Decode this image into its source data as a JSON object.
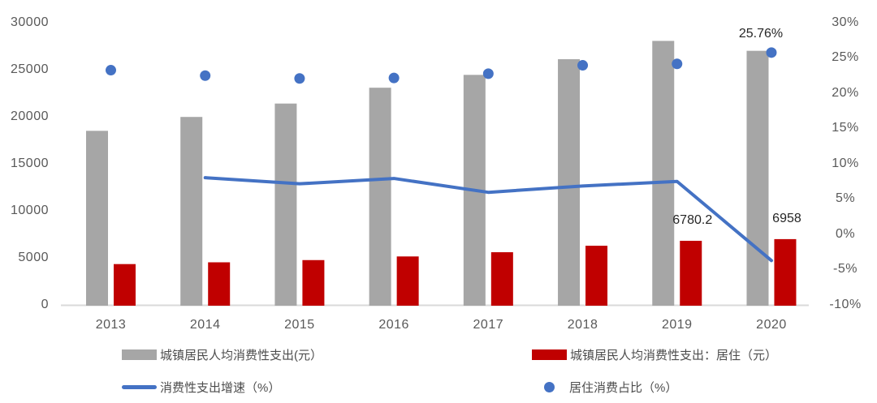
{
  "chart_data": {
    "type": "combo",
    "categories": [
      "2013",
      "2014",
      "2015",
      "2016",
      "2017",
      "2018",
      "2019",
      "2020"
    ],
    "series": [
      {
        "name": "城镇居民人均消费性支出(元）",
        "type": "bar",
        "axis": "left",
        "color": "#a6a6a6",
        "values": [
          18488,
          19968,
          21392,
          23079,
          24445,
          26112,
          28063,
          27007
        ]
      },
      {
        "name": "城镇居民人均消费性支出：居住（元）",
        "type": "bar",
        "axis": "left",
        "color": "#c00000",
        "values": [
          4301,
          4490,
          4726,
          5114,
          5564,
          6255,
          6780.2,
          6958
        ]
      },
      {
        "name": "消费性支出增速（%）",
        "type": "line",
        "axis": "right",
        "color": "#4472c4",
        "values": [
          null,
          8.0,
          7.13,
          7.89,
          5.92,
          6.82,
          7.47,
          -3.76
        ]
      },
      {
        "name": "居住消费占比（%）",
        "type": "scatter",
        "axis": "right",
        "color": "#4472c4",
        "values": [
          23.26,
          22.49,
          22.09,
          22.16,
          22.76,
          23.95,
          24.16,
          25.76
        ]
      }
    ],
    "left_axis": {
      "min": 0,
      "max": 30000,
      "step": 5000,
      "tick_labels": [
        "30000",
        "25000",
        "20000",
        "15000",
        "10000",
        "5000",
        "0"
      ]
    },
    "right_axis": {
      "min": -10,
      "max": 30,
      "step": 5,
      "tick_labels": [
        "30%",
        "25%",
        "20%",
        "15%",
        "10%",
        "5%",
        "0%",
        "-5%",
        "-10%"
      ]
    },
    "annotations": [
      {
        "text": "25.76%",
        "series": 3,
        "index": 7
      },
      {
        "text": "6780.2",
        "series": 1,
        "index": 6
      },
      {
        "text": "6958",
        "series": 1,
        "index": 7
      }
    ],
    "grid": false,
    "legend_position": "bottom",
    "title": "",
    "xlabel": "",
    "ylabel": ""
  },
  "legend": {
    "items": [
      {
        "label": "城镇居民人均消费性支出(元）",
        "swatch": "bar",
        "color": "#a6a6a6"
      },
      {
        "label": "城镇居民人均消费性支出：居住（元）",
        "swatch": "bar",
        "color": "#c00000"
      },
      {
        "label": "消费性支出增速（%）",
        "swatch": "line",
        "color": "#4472c4"
      },
      {
        "label": "居住消费占比（%）",
        "swatch": "dot",
        "color": "#4472c4"
      }
    ]
  },
  "colors": {
    "gray_bar": "#a6a6a6",
    "red_bar": "#c00000",
    "blue": "#4472c4",
    "axis_line": "#d9d9d9",
    "tick_text": "#595959",
    "data_label_text": "#262626",
    "background": "#ffffff"
  }
}
